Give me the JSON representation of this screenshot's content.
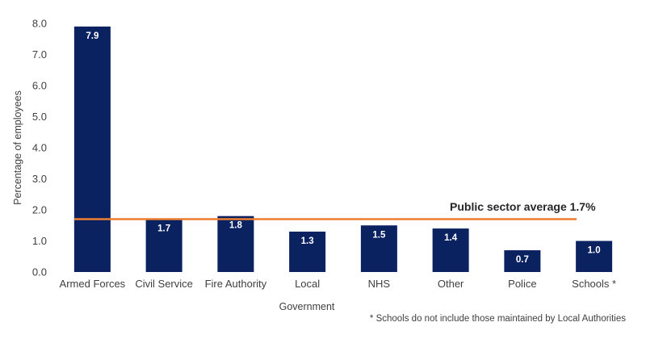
{
  "chart_data": {
    "type": "bar",
    "categories": [
      "Armed Forces",
      "Civil Service",
      "Fire Authority",
      "Local",
      "NHS",
      "Other",
      "Police",
      "Schools *"
    ],
    "values": [
      7.9,
      1.7,
      1.8,
      1.3,
      1.5,
      1.4,
      0.7,
      1.0
    ],
    "value_labels": [
      "7.9",
      "1.7",
      "1.8",
      "1.3",
      "1.5",
      "1.4",
      "0.7",
      "1.0"
    ],
    "xlabel": "Government",
    "ylabel": "Percentage of employees",
    "ylim": [
      0,
      8
    ],
    "yticks": [
      "0.0",
      "1.0",
      "2.0",
      "3.0",
      "4.0",
      "5.0",
      "6.0",
      "7.0",
      "8.0"
    ],
    "grid": false,
    "bar_color": "#0b2260",
    "reference_line": {
      "value": 1.7,
      "label": "Public sector average 1.7%",
      "color": "#ed7d31"
    },
    "footnote": "* Schools do not include those maintained by Local Authorities"
  }
}
